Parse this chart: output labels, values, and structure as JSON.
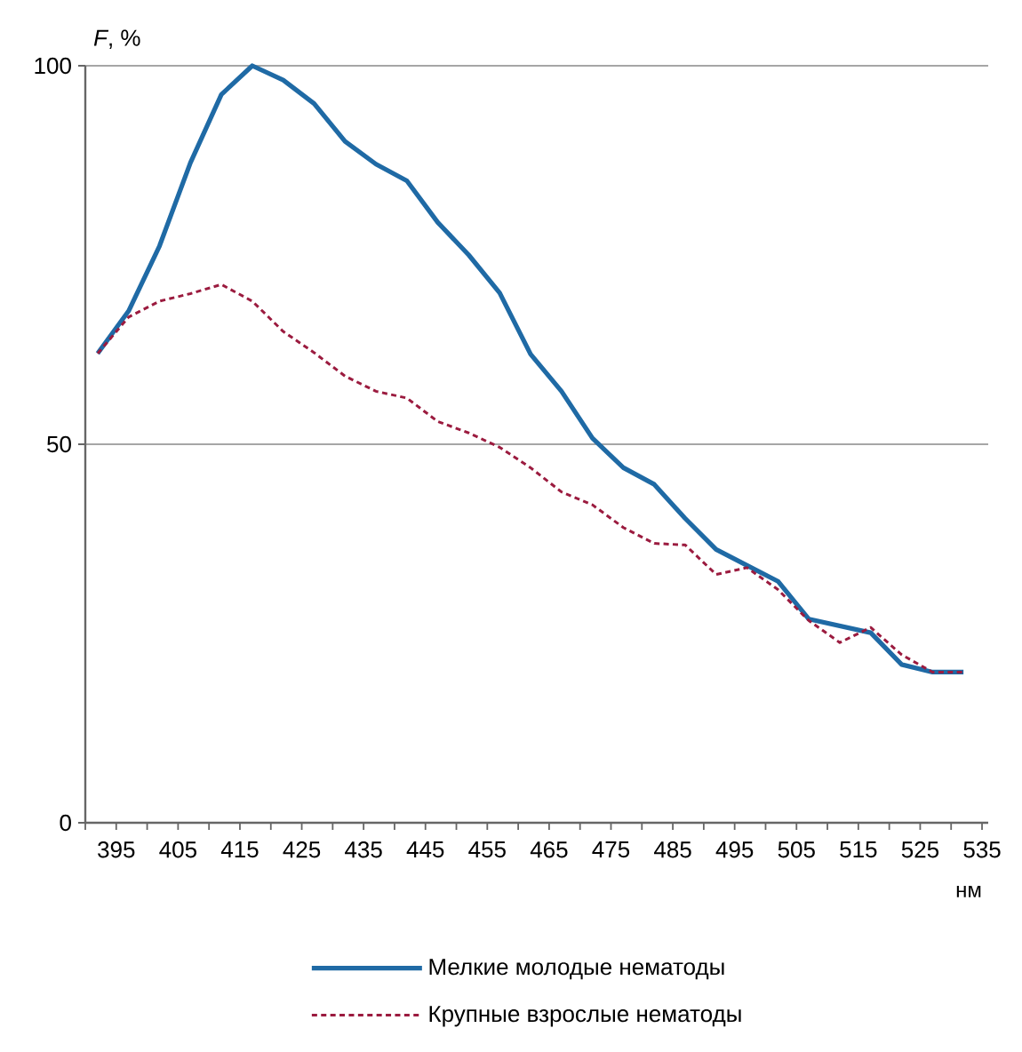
{
  "chart_data": {
    "type": "line",
    "xlabel": "нм",
    "ylabel": "*F*, %",
    "x": [
      392,
      397,
      402,
      407,
      412,
      417,
      422,
      427,
      432,
      437,
      442,
      447,
      452,
      457,
      462,
      467,
      472,
      477,
      482,
      487,
      492,
      497,
      502,
      507,
      512,
      517,
      522,
      527,
      532
    ],
    "xlim": [
      390,
      536
    ],
    "xticks": [
      {
        "value": 390,
        "label": null
      },
      395,
      {
        "value": 400,
        "label": null
      },
      405,
      {
        "value": 410,
        "label": null
      },
      415,
      {
        "value": 420,
        "label": null
      },
      425,
      {
        "value": 430,
        "label": null
      },
      435,
      {
        "value": 440,
        "label": null
      },
      445,
      {
        "value": 450,
        "label": null
      },
      455,
      {
        "value": 460,
        "label": null
      },
      465,
      {
        "value": 470,
        "label": null
      },
      475,
      {
        "value": 480,
        "label": null
      },
      485,
      {
        "value": 490,
        "label": null
      },
      495,
      {
        "value": 500,
        "label": null
      },
      505,
      {
        "value": 510,
        "label": null
      },
      515,
      {
        "value": 520,
        "label": null
      },
      525,
      {
        "value": 530,
        "label": null
      },
      535
    ],
    "ylim": [
      0,
      100
    ],
    "yticks": [
      0,
      50,
      100
    ],
    "grid": "y",
    "legend": "bottom",
    "series": [
      {
        "name": "Мелкие молодые нематоды",
        "color": "#1f6aa5",
        "line_style": "solid",
        "values": [
          62,
          67.6,
          76.2,
          87.2,
          96.2,
          100,
          98.1,
          95,
          90,
          87,
          84.8,
          79.3,
          75,
          70,
          61.9,
          57,
          50.8,
          46.9,
          44.7,
          40.2,
          36.1,
          34,
          31.9,
          26.9,
          26,
          25.1,
          20.9,
          19.9,
          19.9
        ]
      },
      {
        "name": "Крупные взрослые нематоды",
        "color": "#9b1b3f",
        "line_style": "dashed",
        "values": [
          62,
          66.8,
          68.9,
          69.9,
          71.1,
          68.9,
          64.9,
          62.1,
          59,
          57,
          56.1,
          53,
          51.5,
          49.6,
          46.9,
          43.7,
          42,
          39,
          36.9,
          36.7,
          32.8,
          33.7,
          30.8,
          26.7,
          23.8,
          25.8,
          22.2,
          19.9,
          19.9
        ]
      }
    ]
  }
}
